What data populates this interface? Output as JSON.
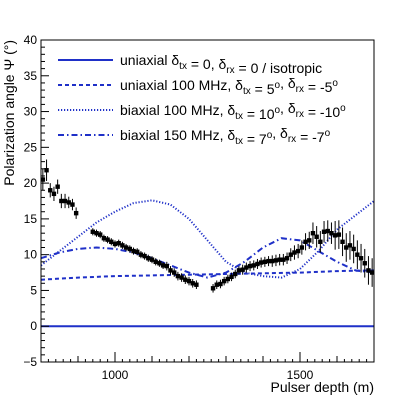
{
  "chart_data": {
    "type": "line",
    "xlabel": "Pulser depth (m)",
    "ylabel": "Polarization angle Ψ (°)",
    "xlim": [
      800,
      1700
    ],
    "ylim": [
      -5,
      40
    ],
    "xticks": [
      1000,
      1500
    ],
    "xtick_labels": [
      "1000",
      "1500"
    ],
    "yticks": [
      -5,
      0,
      5,
      10,
      15,
      20,
      25,
      30,
      35,
      40
    ],
    "ytick_labels": [
      "−5",
      "0",
      "5",
      "10",
      "15",
      "20",
      "25",
      "30",
      "35",
      "40"
    ],
    "grid": false,
    "legend_position": "top",
    "series": [
      {
        "name": "uniaxial δtx = 0, δrx = 0 / isotropic",
        "legend_parts": [
          {
            "text": "uniaxial δ"
          },
          {
            "sub": "tx"
          },
          {
            "text": " = 0, δ"
          },
          {
            "sub": "rx"
          },
          {
            "text": " = 0 / isotropic"
          }
        ],
        "color": "#1f30c8",
        "style": "solid",
        "x": [
          800,
          1700
        ],
        "y": [
          0,
          0
        ]
      },
      {
        "name": "uniaxial 100 MHz, δtx = 5°, δrx = -5°",
        "legend_parts": [
          {
            "text": "uniaxial 100 MHz, δ"
          },
          {
            "sub": "tx"
          },
          {
            "text": " = 5"
          },
          {
            "sup": "o"
          },
          {
            "text": ", δ"
          },
          {
            "sub": "rx"
          },
          {
            "text": " = -5"
          },
          {
            "sup": "o"
          }
        ],
        "color": "#1f30c8",
        "style": "dashed",
        "x": [
          800,
          900,
          1000,
          1100,
          1200,
          1300,
          1400,
          1500,
          1600,
          1700
        ],
        "y": [
          6.5,
          6.8,
          7.0,
          7.1,
          7.2,
          7.3,
          7.4,
          7.5,
          7.7,
          7.8
        ]
      },
      {
        "name": "biaxial 100 MHz, δtx = 10°, δrx = -10°",
        "legend_parts": [
          {
            "text": "biaxial 100 MHz, δ"
          },
          {
            "sub": "tx"
          },
          {
            "text": " = 10"
          },
          {
            "sup": "o"
          },
          {
            "text": ", δ"
          },
          {
            "sub": "rx"
          },
          {
            "text": " = -10"
          },
          {
            "sup": "o"
          }
        ],
        "color": "#1f30c8",
        "style": "dotted",
        "x": [
          800,
          850,
          900,
          950,
          1000,
          1050,
          1100,
          1150,
          1200,
          1250,
          1300,
          1350,
          1400,
          1450,
          1500,
          1550,
          1600,
          1650,
          1700
        ],
        "y": [
          8.5,
          10.5,
          12.5,
          14.5,
          16.0,
          17.2,
          17.6,
          17.0,
          15.0,
          12.0,
          9.0,
          7.5,
          7.0,
          6.8,
          8.0,
          10.5,
          13.5,
          15.5,
          17.5
        ]
      },
      {
        "name": "biaxial 150 MHz, δtx = 7°, δrx = -7°",
        "legend_parts": [
          {
            "text": "biaxial 150 MHz, δ"
          },
          {
            "sub": "tx"
          },
          {
            "text": " = 7"
          },
          {
            "sup": "o"
          },
          {
            "text": ", δ"
          },
          {
            "sub": "rx"
          },
          {
            "text": " = -7"
          },
          {
            "sup": "o"
          }
        ],
        "color": "#1f30c8",
        "style": "dashdot",
        "x": [
          800,
          850,
          900,
          950,
          1000,
          1050,
          1100,
          1150,
          1200,
          1250,
          1300,
          1350,
          1400,
          1450,
          1500,
          1550,
          1600,
          1650,
          1700
        ],
        "y": [
          9.5,
          10.3,
          10.8,
          11.0,
          10.8,
          10.3,
          9.5,
          8.5,
          7.5,
          6.8,
          7.5,
          9.0,
          11.0,
          12.3,
          12.0,
          10.5,
          9.0,
          7.8,
          7.5
        ]
      },
      {
        "name": "data",
        "color": "#000000",
        "style": "markers",
        "x": [
          805,
          815,
          825,
          835,
          845,
          855,
          865,
          875,
          885,
          895,
          940,
          950,
          960,
          970,
          980,
          990,
          1000,
          1010,
          1020,
          1030,
          1040,
          1050,
          1060,
          1070,
          1080,
          1090,
          1100,
          1110,
          1120,
          1130,
          1140,
          1150,
          1160,
          1170,
          1180,
          1190,
          1200,
          1210,
          1220,
          1265,
          1275,
          1285,
          1295,
          1305,
          1315,
          1325,
          1335,
          1345,
          1355,
          1365,
          1375,
          1385,
          1395,
          1405,
          1415,
          1425,
          1435,
          1445,
          1455,
          1465,
          1475,
          1485,
          1495,
          1505,
          1515,
          1525,
          1535,
          1545,
          1555,
          1565,
          1575,
          1585,
          1595,
          1605,
          1615,
          1625,
          1635,
          1645,
          1655,
          1665,
          1675,
          1685,
          1695
        ],
        "y": [
          20.5,
          21.8,
          19.0,
          18.5,
          19.5,
          17.5,
          17.5,
          17.3,
          17.0,
          15.8,
          13.2,
          13.0,
          12.8,
          12.3,
          12.1,
          11.8,
          11.5,
          11.6,
          11.3,
          11.0,
          10.8,
          10.5,
          10.4,
          10.0,
          9.8,
          9.5,
          9.3,
          9.0,
          8.8,
          8.5,
          8.4,
          7.8,
          7.5,
          7.0,
          6.8,
          6.5,
          6.3,
          6.0,
          5.8,
          5.3,
          5.8,
          5.9,
          6.3,
          6.6,
          6.9,
          7.3,
          7.8,
          7.9,
          8.2,
          8.4,
          8.5,
          8.7,
          8.9,
          9.0,
          9.1,
          9.1,
          9.2,
          9.3,
          9.3,
          9.5,
          10.0,
          10.3,
          10.5,
          11.0,
          11.8,
          12.0,
          13.0,
          12.5,
          11.8,
          13.2,
          13.3,
          13.0,
          12.7,
          12.8,
          11.8,
          11.0,
          11.3,
          10.8,
          10.0,
          9.5,
          8.8,
          7.8,
          7.5
        ],
        "err": [
          1.5,
          1.5,
          1.0,
          1.0,
          1.0,
          1.0,
          1.0,
          0.8,
          0.8,
          0.8,
          0.5,
          0.5,
          0.5,
          0.5,
          0.5,
          0.5,
          0.5,
          0.5,
          0.5,
          0.5,
          0.5,
          0.5,
          0.5,
          0.5,
          0.5,
          0.5,
          0.5,
          0.5,
          0.5,
          0.5,
          0.6,
          0.6,
          0.6,
          0.6,
          0.6,
          0.6,
          0.6,
          0.6,
          0.6,
          0.6,
          0.6,
          0.6,
          0.6,
          0.6,
          0.6,
          0.6,
          0.6,
          0.7,
          0.7,
          0.7,
          0.7,
          0.7,
          0.7,
          0.7,
          0.7,
          0.8,
          0.8,
          0.8,
          0.8,
          0.8,
          0.9,
          1.0,
          1.0,
          1.0,
          1.2,
          1.2,
          1.5,
          1.5,
          1.5,
          1.5,
          1.5,
          1.5,
          2.0,
          2.0,
          2.0,
          2.0,
          2.0,
          2.0,
          2.0,
          2.0,
          2.0,
          2.0,
          2.0
        ]
      }
    ]
  }
}
